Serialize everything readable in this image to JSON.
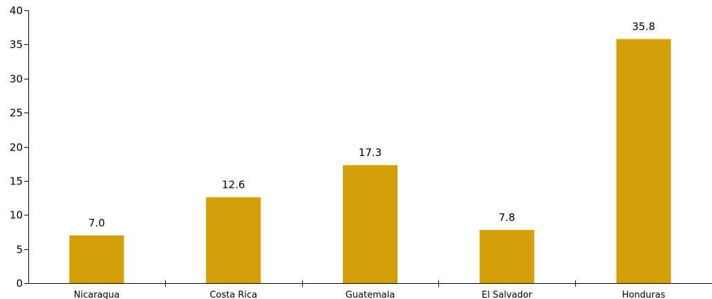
{
  "chart_data": {
    "type": "bar",
    "categories": [
      "Nicaragua",
      "Costa Rica",
      "Guatemala",
      "El Salvador",
      "Honduras"
    ],
    "values": [
      7.0,
      12.6,
      17.3,
      7.8,
      35.8
    ],
    "data_labels": [
      "7.0",
      "12.6",
      "17.3",
      "7.8",
      "35.8"
    ],
    "ylim": [
      0,
      40
    ],
    "yticks": [
      0,
      5,
      10,
      15,
      20,
      25,
      30,
      35,
      40
    ],
    "grid": false,
    "legend": "none",
    "bar_color": "#D4A00A",
    "title": "",
    "xlabel": "",
    "ylabel": ""
  }
}
